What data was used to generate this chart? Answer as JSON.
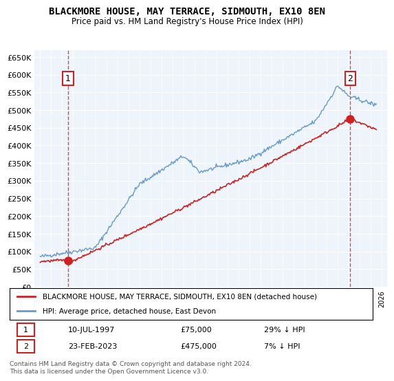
{
  "title": "BLACKMORE HOUSE, MAY TERRACE, SIDMOUTH, EX10 8EN",
  "subtitle": "Price paid vs. HM Land Registry's House Price Index (HPI)",
  "legend_line1": "BLACKMORE HOUSE, MAY TERRACE, SIDMOUTH, EX10 8EN (detached house)",
  "legend_line2": "HPI: Average price, detached house, East Devon",
  "annotation1_date": "10-JUL-1997",
  "annotation1_price": "£75,000",
  "annotation1_hpi": "29% ↓ HPI",
  "annotation2_date": "23-FEB-2023",
  "annotation2_price": "£475,000",
  "annotation2_hpi": "7% ↓ HPI",
  "footnote": "Contains HM Land Registry data © Crown copyright and database right 2024.\nThis data is licensed under the Open Government Licence v3.0.",
  "hpi_color": "#6699cc",
  "price_color": "#cc2222",
  "dot_color": "#cc2222",
  "plot_bg": "#eef4fb",
  "yticks": [
    0,
    50000,
    100000,
    150000,
    200000,
    250000,
    300000,
    350000,
    400000,
    450000,
    500000,
    550000,
    600000,
    650000
  ],
  "sale1_year": 1997.53,
  "sale1_price": 75000,
  "sale2_year": 2023.14,
  "sale2_price": 475000
}
